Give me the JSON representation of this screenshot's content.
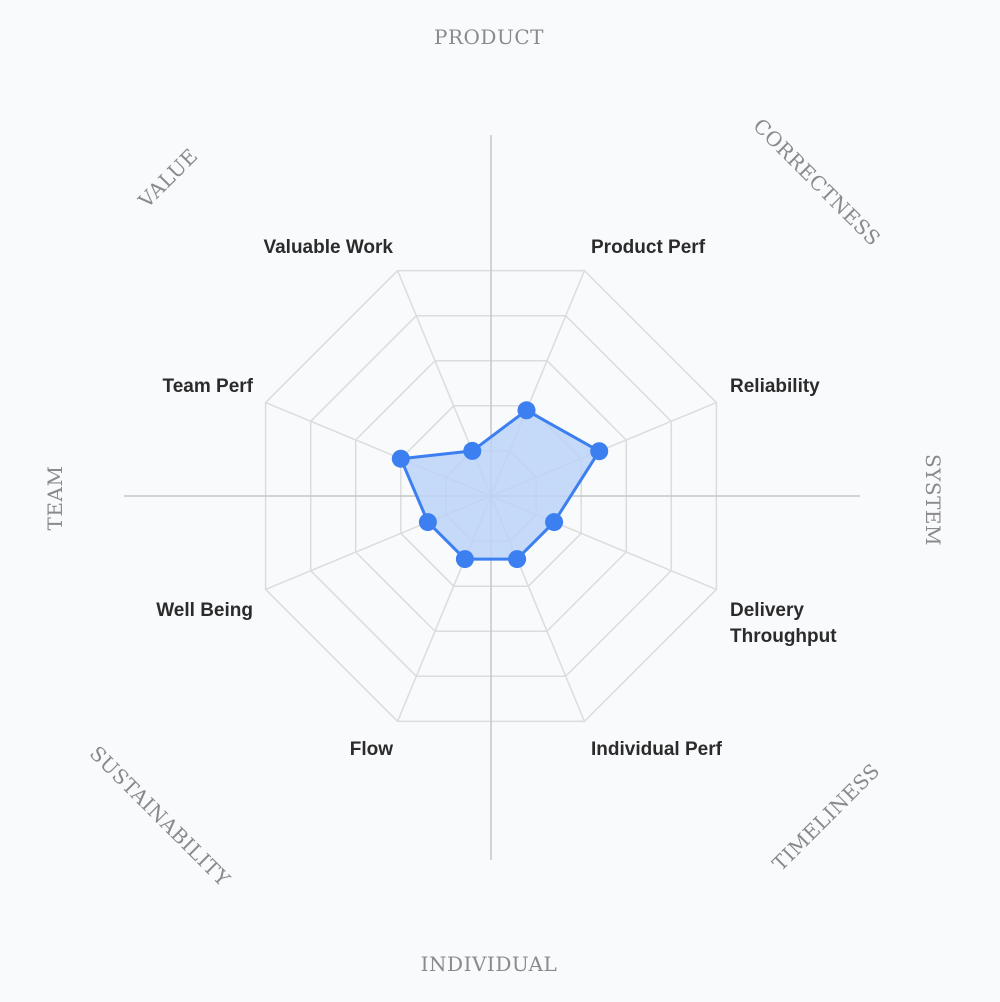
{
  "chart_data": {
    "type": "radar",
    "max": 5,
    "levels": 5,
    "axes": [
      {
        "label": "Product Perf",
        "value": 1.9
      },
      {
        "label": "Reliability",
        "value": 2.4
      },
      {
        "label": "Delivery Throughput",
        "value": 1.4
      },
      {
        "label": "Individual Perf",
        "value": 1.4
      },
      {
        "label": "Flow",
        "value": 1.4
      },
      {
        "label": "Well Being",
        "value": 1.4
      },
      {
        "label": "Team Perf",
        "value": 2.0
      },
      {
        "label": "Valuable Work",
        "value": 1.0
      }
    ],
    "dimensions": [
      "PRODUCT",
      "CORRECTNESS",
      "SYSTEM",
      "TIMELINESS",
      "INDIVIDUAL",
      "SUSTAINABILITY",
      "TEAM",
      "VALUE"
    ],
    "colors": {
      "line": "#3b7ff0",
      "fill": "#bcd2f7",
      "point": "#3b7ff0",
      "grid": "#dcdcdc",
      "axis": "#c6c6c6",
      "metric_label": "#2b2b2b",
      "dimension_label": "#8a8a8a"
    }
  }
}
